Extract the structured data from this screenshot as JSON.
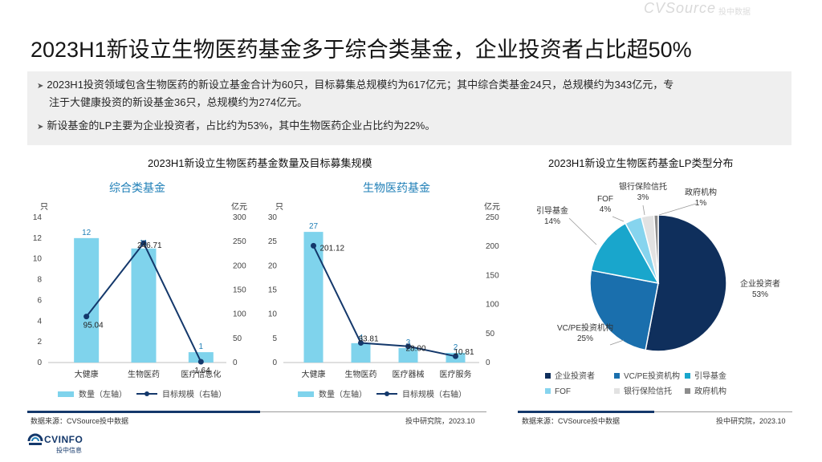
{
  "title": "2023H1新设立生物医药基金多于综合类基金，企业投资者占比超50%",
  "watermark": {
    "brand": "CVSource",
    "sub": "投中数据"
  },
  "summary": {
    "bullet1_line1": "2023H1投资领域包含生物医药的新设立基金合计为60只，目标募集总规模约为617亿元；其中综合类基金24只，总规模约为343亿元，专",
    "bullet1_line2": "注于大健康投资的新设基金36只，总规模约为274亿元。",
    "bullet2": "新设基金的LP主要为企业投资者，占比约为53%，其中生物医药企业占比约为22%。"
  },
  "left_section": {
    "title": "2023H1新设立生物医药基金数量及目标募集规模",
    "source": "数据来源：CVSource投中数据",
    "org": "投中研究院，2023.10"
  },
  "right_section": {
    "title": "2023H1新设立生物医药基金LP类型分布",
    "source": "数据来源：CVSource投中数据",
    "org": "投中研究院，2023.10"
  },
  "logo": {
    "name": "CVINFO",
    "sub": "投中信息"
  },
  "colors": {
    "bar": "#7fd3ec",
    "line": "#14386b",
    "subtitle": "#1f7fb7"
  },
  "chart_data": [
    {
      "type": "bar",
      "title": "综合类基金",
      "categories": [
        "大健康",
        "生物医药",
        "医疗信息化"
      ],
      "series": [
        {
          "name": "数量（左轴）",
          "type": "bar",
          "values": [
            12,
            11,
            1
          ]
        },
        {
          "name": "目标规模（右轴）",
          "type": "line",
          "values": [
            95.04,
            246.71,
            1.64
          ]
        }
      ],
      "ylabel_left": "只",
      "ylabel_right": "亿元",
      "ylim_left": [
        0,
        14
      ],
      "yticks_left": [
        0,
        2,
        4,
        6,
        8,
        10,
        12,
        14
      ],
      "ylim_right": [
        0,
        300
      ],
      "yticks_right": [
        0,
        50,
        100,
        150,
        200,
        250,
        300
      ]
    },
    {
      "type": "bar",
      "title": "生物医药基金",
      "categories": [
        "大健康",
        "生物医药",
        "医疗器械",
        "医疗服务"
      ],
      "series": [
        {
          "name": "数量（左轴）",
          "type": "bar",
          "values": [
            27,
            4,
            3,
            2
          ]
        },
        {
          "name": "目标规模（右轴）",
          "type": "line",
          "values": [
            201.12,
            33.81,
            28.0,
            10.81
          ]
        }
      ],
      "ylabel_left": "只",
      "ylabel_right": "亿元",
      "ylim_left": [
        0,
        30
      ],
      "yticks_left": [
        0,
        5,
        10,
        15,
        20,
        25,
        30
      ],
      "ylim_right": [
        0,
        250
      ],
      "yticks_right": [
        0,
        50,
        100,
        150,
        200,
        250
      ]
    },
    {
      "type": "pie",
      "title": "2023H1新设立生物医药基金LP类型分布",
      "labels": [
        "企业投资者",
        "VC/PE投资机构",
        "引导基金",
        "FOF",
        "银行保险信托",
        "政府机构"
      ],
      "values": [
        53,
        25,
        14,
        4,
        3,
        1
      ],
      "value_labels": [
        "53%",
        "25%",
        "14%",
        "4%",
        "3%",
        "1%"
      ],
      "colors": [
        "#0f2f5c",
        "#1a6fad",
        "#19a6cc",
        "#86d4ee",
        "#e2e2e2",
        "#8c8c8c"
      ]
    }
  ]
}
